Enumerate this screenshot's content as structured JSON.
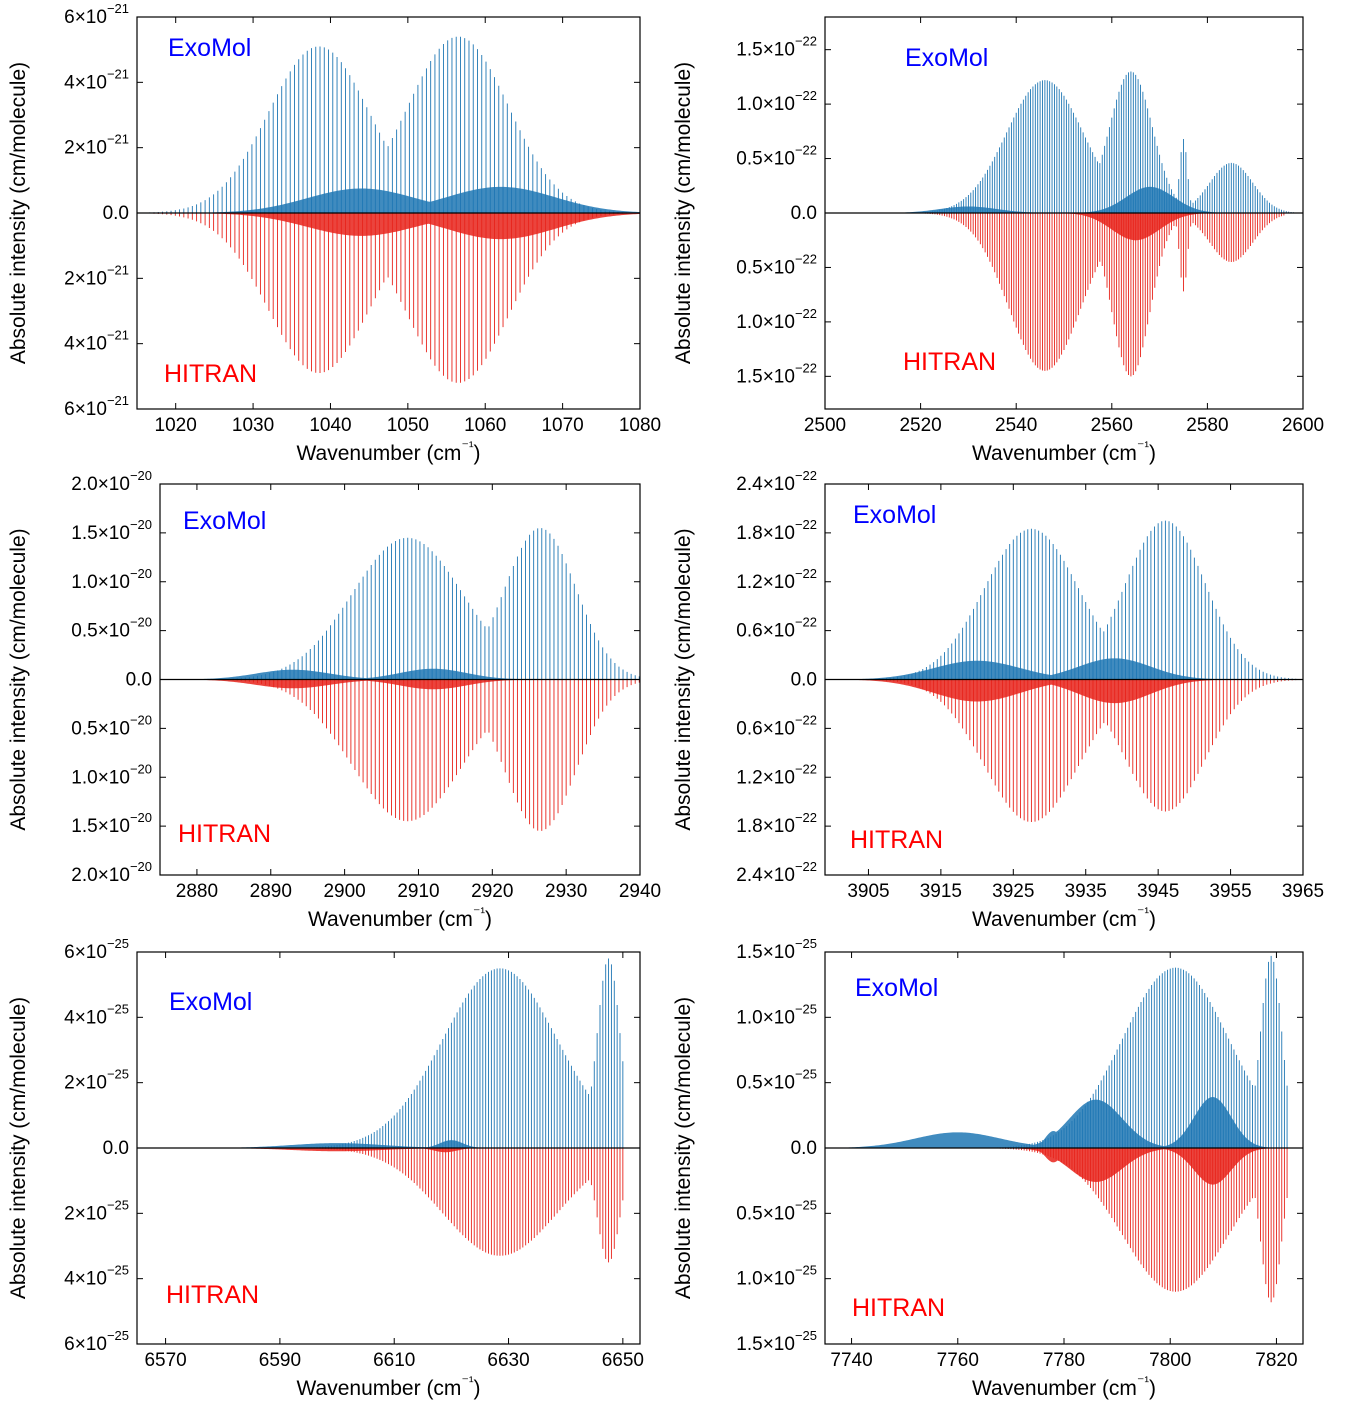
{
  "colors": {
    "exomol_line": "#1f77b4",
    "hitran_line": "#e8231b",
    "exomol_label": "#0000ff",
    "hitran_label": "#ff0000"
  },
  "chart_data": [
    {
      "type": "bar",
      "xlabel": "Wavenumber (cm⁻¹)",
      "ylabel": "Absolute intensity (cm/molecule)",
      "xlim": [
        1015,
        1080
      ],
      "ylim": [
        -6e-21,
        6e-21
      ],
      "xticks": [
        1020,
        1030,
        1040,
        1050,
        1060,
        1070,
        1080
      ],
      "yticks": [
        {
          "value": 6e-21,
          "mant": "6",
          "exp": "−21"
        },
        {
          "value": 4e-21,
          "mant": "4",
          "exp": "−21"
        },
        {
          "value": 2e-21,
          "mant": "2",
          "exp": "−21"
        },
        {
          "value": 0,
          "mant": "0.0",
          "exp": ""
        },
        {
          "value": -2e-21,
          "mant": "2",
          "exp": "−21"
        },
        {
          "value": -4e-21,
          "mant": "4",
          "exp": "−21"
        },
        {
          "value": -6e-21,
          "mant": "6",
          "exp": "−21"
        }
      ],
      "series": [
        {
          "name": "ExoMol",
          "x_range": [
            1015,
            1080
          ],
          "spacing": 0.55,
          "envelope": [
            {
              "center": 1038.5,
              "peak": 5.1e-21,
              "width": 6.5
            },
            {
              "center": 1056.5,
              "peak": 5.4e-21,
              "width": 6.5
            }
          ],
          "weak_band": [
            {
              "center": 1044,
              "peak": 7.5e-22,
              "width": 7
            },
            {
              "center": 1062,
              "peak": 8e-22,
              "width": 7
            }
          ]
        },
        {
          "name": "HITRAN",
          "x_range": [
            1015,
            1080
          ],
          "spacing": 0.55,
          "envelope": [
            {
              "center": 1038.5,
              "peak": 4.9e-21,
              "width": 6.5
            },
            {
              "center": 1056.5,
              "peak": 5.2e-21,
              "width": 6.5
            }
          ],
          "weak_band": [
            {
              "center": 1044,
              "peak": 7e-22,
              "width": 7
            },
            {
              "center": 1062,
              "peak": 8e-22,
              "width": 7
            }
          ]
        }
      ]
    },
    {
      "type": "bar",
      "xlabel": "Wavenumber (cm⁻¹)",
      "ylabel": "Absolute intensity (cm/molecule)",
      "xlim": [
        2500,
        2600
      ],
      "ylim": [
        -1.8e-22,
        1.8e-22
      ],
      "xticks": [
        2500,
        2520,
        2540,
        2560,
        2580,
        2600
      ],
      "yticks": [
        {
          "value": 1.5e-22,
          "mant": "1.5",
          "exp": "−22"
        },
        {
          "value": 1e-22,
          "mant": "1.0",
          "exp": "−22"
        },
        {
          "value": 5e-23,
          "mant": "0.5",
          "exp": "−22"
        },
        {
          "value": 0,
          "mant": "0.0",
          "exp": ""
        },
        {
          "value": -5e-23,
          "mant": "0.5",
          "exp": "−22"
        },
        {
          "value": -1e-22,
          "mant": "1.0",
          "exp": "−22"
        },
        {
          "value": -1.5e-22,
          "mant": "1.5",
          "exp": "−22"
        }
      ],
      "series": [
        {
          "name": "ExoMol",
          "x_range": [
            2500,
            2600
          ],
          "spacing": 0.5,
          "envelope": [
            {
              "center": 2546,
              "peak": 1.22e-22,
              "width": 8
            },
            {
              "center": 2564,
              "peak": 1.3e-22,
              "width": 4.5
            },
            {
              "center": 2575,
              "peak": 6.8e-23,
              "width": 0.8
            },
            {
              "center": 2585,
              "peak": 4.6e-23,
              "width": 4.5
            }
          ],
          "weak_band": [
            {
              "center": 2530,
              "peak": 6e-24,
              "width": 6
            },
            {
              "center": 2568,
              "peak": 2.4e-23,
              "width": 5
            }
          ]
        },
        {
          "name": "HITRAN",
          "x_range": [
            2521,
            2596
          ],
          "spacing": 0.5,
          "envelope": [
            {
              "center": 2546,
              "peak": 1.45e-22,
              "width": 7.5
            },
            {
              "center": 2564,
              "peak": 1.5e-22,
              "width": 4
            },
            {
              "center": 2575,
              "peak": 7.2e-23,
              "width": 0.8
            },
            {
              "center": 2585,
              "peak": 4.5e-23,
              "width": 4.5
            }
          ],
          "weak_band": [
            {
              "center": 2565,
              "peak": 2.5e-23,
              "width": 5
            }
          ]
        }
      ]
    },
    {
      "type": "bar",
      "xlabel": "Wavenumber (cm⁻¹)",
      "ylabel": "Absolute intensity (cm/molecule)",
      "xlim": [
        2875,
        2940
      ],
      "ylim": [
        -2e-20,
        2e-20
      ],
      "xticks": [
        2880,
        2890,
        2900,
        2910,
        2920,
        2930,
        2940
      ],
      "yticks": [
        {
          "value": 2e-20,
          "mant": "2.0",
          "exp": "−20"
        },
        {
          "value": 1.5e-20,
          "mant": "1.5",
          "exp": "−20"
        },
        {
          "value": 1e-20,
          "mant": "1.0",
          "exp": "−20"
        },
        {
          "value": 5e-21,
          "mant": "0.5",
          "exp": "−20"
        },
        {
          "value": 0,
          "mant": "0.0",
          "exp": ""
        },
        {
          "value": -5e-21,
          "mant": "0.5",
          "exp": "−20"
        },
        {
          "value": -1e-20,
          "mant": "1.0",
          "exp": "−20"
        },
        {
          "value": -1.5e-20,
          "mant": "1.5",
          "exp": "−20"
        },
        {
          "value": -2e-20,
          "mant": "2.0",
          "exp": "−20"
        }
      ],
      "series": [
        {
          "name": "ExoMol",
          "x_range": [
            2875,
            2940
          ],
          "spacing": 0.55,
          "envelope": [
            {
              "center": 2908.5,
              "peak": 1.45e-20,
              "width": 7.5
            },
            {
              "center": 2926.5,
              "peak": 1.55e-20,
              "width": 4.8
            }
          ],
          "weak_band": [
            {
              "center": 2893,
              "peak": 1e-21,
              "width": 5
            },
            {
              "center": 2912,
              "peak": 1.1e-21,
              "width": 4.5
            }
          ]
        },
        {
          "name": "HITRAN",
          "x_range": [
            2875,
            2940
          ],
          "spacing": 0.55,
          "envelope": [
            {
              "center": 2908.5,
              "peak": 1.45e-20,
              "width": 7.5
            },
            {
              "center": 2926.5,
              "peak": 1.55e-20,
              "width": 4.8
            }
          ],
          "weak_band": [
            {
              "center": 2893,
              "peak": 9e-22,
              "width": 5
            },
            {
              "center": 2912,
              "peak": 1e-21,
              "width": 4.5
            }
          ]
        }
      ]
    },
    {
      "type": "bar",
      "xlabel": "Wavenumber (cm⁻¹)",
      "ylabel": "Absolute intensity (cm/molecule)",
      "xlim": [
        3899,
        3965
      ],
      "ylim": [
        -2.4e-22,
        2.4e-22
      ],
      "xticks": [
        3905,
        3915,
        3925,
        3935,
        3945,
        3955,
        3965
      ],
      "yticks": [
        {
          "value": 2.4e-22,
          "mant": "2.4",
          "exp": "−22"
        },
        {
          "value": 1.8e-22,
          "mant": "1.8",
          "exp": "−22"
        },
        {
          "value": 1.2e-22,
          "mant": "1.2",
          "exp": "−22"
        },
        {
          "value": 6e-23,
          "mant": "0.6",
          "exp": "−22"
        },
        {
          "value": 0,
          "mant": "0.0",
          "exp": ""
        },
        {
          "value": -6e-23,
          "mant": "0.6",
          "exp": "−22"
        },
        {
          "value": -1.2e-22,
          "mant": "1.2",
          "exp": "−22"
        },
        {
          "value": -1.8e-22,
          "mant": "1.8",
          "exp": "−22"
        },
        {
          "value": -2.4e-22,
          "mant": "2.4",
          "exp": "−22"
        }
      ],
      "series": [
        {
          "name": "ExoMol",
          "x_range": [
            3899,
            3965
          ],
          "spacing": 0.5,
          "envelope": [
            {
              "center": 3927.5,
              "peak": 1.85e-22,
              "width": 6.5
            },
            {
              "center": 3946,
              "peak": 1.95e-22,
              "width": 5.5
            }
          ],
          "weak_band": [
            {
              "center": 3920,
              "peak": 2.3e-23,
              "width": 6
            },
            {
              "center": 3939,
              "peak": 2.6e-23,
              "width": 5
            }
          ]
        },
        {
          "name": "HITRAN",
          "x_range": [
            3899,
            3965
          ],
          "spacing": 0.5,
          "envelope": [
            {
              "center": 3927.5,
              "peak": 1.75e-22,
              "width": 6.5
            },
            {
              "center": 3946,
              "peak": 1.62e-22,
              "width": 5.5
            }
          ],
          "weak_band": [
            {
              "center": 3920,
              "peak": 2.7e-23,
              "width": 6
            },
            {
              "center": 3939,
              "peak": 2.9e-23,
              "width": 5
            }
          ]
        }
      ]
    },
    {
      "type": "bar",
      "xlabel": "Wavenumber (cm⁻¹)",
      "ylabel": "Absolute intensity (cm/molecule)",
      "xlim": [
        6565,
        6653
      ],
      "ylim": [
        -6e-25,
        6e-25
      ],
      "xticks": [
        6570,
        6590,
        6610,
        6630,
        6650
      ],
      "yticks": [
        {
          "value": 6e-25,
          "mant": "6",
          "exp": "−25"
        },
        {
          "value": 4e-25,
          "mant": "4",
          "exp": "−25"
        },
        {
          "value": 2e-25,
          "mant": "2",
          "exp": "−25"
        },
        {
          "value": 0,
          "mant": "0.0",
          "exp": ""
        },
        {
          "value": -2e-25,
          "mant": "2",
          "exp": "−25"
        },
        {
          "value": -4e-25,
          "mant": "4",
          "exp": "−25"
        },
        {
          "value": -6e-25,
          "mant": "6",
          "exp": "−25"
        }
      ],
      "series": [
        {
          "name": "ExoMol",
          "x_range": [
            6565,
            6650
          ],
          "spacing": 0.5,
          "envelope": [
            {
              "center": 6628.5,
              "peak": 5.5e-25,
              "width": 10
            },
            {
              "center": 6647.5,
              "peak": 5.8e-25,
              "width": 2
            }
          ],
          "weak_band": [
            {
              "center": 6600,
              "peak": 1.5e-26,
              "width": 8
            },
            {
              "center": 6620,
              "peak": 2.4e-26,
              "width": 2
            }
          ]
        },
        {
          "name": "HITRAN",
          "x_range": [
            6565,
            6650
          ],
          "spacing": 0.5,
          "envelope": [
            {
              "center": 6628.5,
              "peak": 3.3e-25,
              "width": 10
            },
            {
              "center": 6647.5,
              "peak": 3.5e-25,
              "width": 2
            }
          ],
          "weak_band": [
            {
              "center": 6600,
              "peak": 1e-26,
              "width": 8
            },
            {
              "center": 6619,
              "peak": 1.3e-26,
              "width": 2
            }
          ]
        }
      ]
    },
    {
      "type": "bar",
      "xlabel": "Wavenumber (cm⁻¹)",
      "ylabel": "Absolute intensity (cm/molecule)",
      "xlim": [
        7735,
        7825
      ],
      "ylim": [
        -1.5e-25,
        1.5e-25
      ],
      "xticks": [
        7740,
        7760,
        7780,
        7800,
        7820
      ],
      "yticks": [
        {
          "value": 1.5e-25,
          "mant": "1.5",
          "exp": "−25"
        },
        {
          "value": 1e-25,
          "mant": "1.0",
          "exp": "−25"
        },
        {
          "value": 5e-26,
          "mant": "0.5",
          "exp": "−25"
        },
        {
          "value": 0,
          "mant": "0.0",
          "exp": ""
        },
        {
          "value": -5e-26,
          "mant": "0.5",
          "exp": "−25"
        },
        {
          "value": -1e-25,
          "mant": "1.0",
          "exp": "−25"
        },
        {
          "value": -1.5e-25,
          "mant": "1.5",
          "exp": "−25"
        }
      ],
      "series": [
        {
          "name": "ExoMol",
          "x_range": [
            7735,
            7822
          ],
          "spacing": 0.5,
          "envelope": [
            {
              "center": 7801,
              "peak": 1.38e-25,
              "width": 10
            },
            {
              "center": 7819,
              "peak": 1.47e-25,
              "width": 2
            }
          ],
          "weak_band": [
            {
              "center": 7760,
              "peak": 1.2e-26,
              "width": 8
            },
            {
              "center": 7778,
              "peak": 1.3e-26,
              "width": 1.5
            },
            {
              "center": 7786,
              "peak": 3.7e-26,
              "width": 5
            },
            {
              "center": 7808,
              "peak": 3.9e-26,
              "width": 3.5
            }
          ]
        },
        {
          "name": "HITRAN",
          "x_range": [
            7735,
            7822
          ],
          "spacing": 0.5,
          "envelope": [
            {
              "center": 7801,
              "peak": 1.1e-25,
              "width": 10
            },
            {
              "center": 7819,
              "peak": 1.18e-25,
              "width": 2
            }
          ],
          "weak_band": [
            {
              "center": 7778,
              "peak": 1.1e-26,
              "width": 1.5
            },
            {
              "center": 7786,
              "peak": 2.6e-26,
              "width": 5
            },
            {
              "center": 7808,
              "peak": 2.8e-26,
              "width": 3.5
            }
          ]
        }
      ]
    }
  ]
}
